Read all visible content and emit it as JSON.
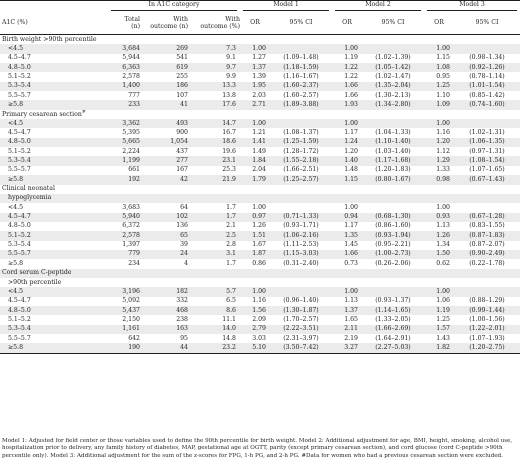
{
  "header": {
    "group_in_a1c": "In A1C category",
    "model1": "Model 1",
    "model2": "Model 2",
    "model3": "Model 3",
    "a1c": "A1C (%)",
    "total": "Total",
    "total_n": "(n)",
    "with_outcome_n_1": "With",
    "with_outcome_n_2": "outcome (n)",
    "with_outcome_pct_1": "With",
    "with_outcome_pct_2": "outcome (%)",
    "or": "OR",
    "ci": "95% CI"
  },
  "sections": [
    {
      "title": "Birth weight >90th percentile",
      "title_cont": "",
      "title_sup": "",
      "rows": [
        {
          "a1c": "<4.5",
          "total": "3,684",
          "n": "269",
          "pct": "7.3",
          "or1": "1.00",
          "ci1": "",
          "or2": "1.00",
          "ci2": "",
          "or3": "1.00",
          "ci3": ""
        },
        {
          "a1c": "4.5–4.7",
          "total": "5,944",
          "n": "541",
          "pct": "9.1",
          "or1": "1.27",
          "ci1": "(1.09–1.48)",
          "or2": "1.19",
          "ci2": "(1.02–1.39)",
          "or3": "1.15",
          "ci3": "(0.98–1.34)"
        },
        {
          "a1c": "4.8–5.0",
          "total": "6,363",
          "n": "619",
          "pct": "9.7",
          "or1": "1.37",
          "ci1": "(1.18–1.59)",
          "or2": "1.22",
          "ci2": "(1.05–1.42)",
          "or3": "1.08",
          "ci3": "(0.92–1.26)"
        },
        {
          "a1c": "5.1–5.2",
          "total": "2,578",
          "n": "255",
          "pct": "9.9",
          "or1": "1.39",
          "ci1": "(1.16–1.67)",
          "or2": "1.22",
          "ci2": "(1.02–1.47)",
          "or3": "0.95",
          "ci3": "(0.78–1.14)"
        },
        {
          "a1c": "5.3–5.4",
          "total": "1,400",
          "n": "186",
          "pct": "13.3",
          "or1": "1.95",
          "ci1": "(1.60–2.37)",
          "or2": "1.66",
          "ci2": "(1.35–2.04)",
          "or3": "1.25",
          "ci3": "(1.01–1.54)"
        },
        {
          "a1c": "5.5–5.7",
          "total": "777",
          "n": "107",
          "pct": "13.8",
          "or1": "2.03",
          "ci1": "(1.60–2.57)",
          "or2": "1.66",
          "ci2": "(1.30–2.13)",
          "or3": "1.10",
          "ci3": "(0.85–1.42)"
        },
        {
          "a1c": "≥5.8",
          "total": "233",
          "n": "41",
          "pct": "17.6",
          "or1": "2.71",
          "ci1": "(1.89–3.88)",
          "or2": "1.93",
          "ci2": "(1.34–2.80)",
          "or3": "1.09",
          "ci3": "(0.74–1.60)"
        }
      ]
    },
    {
      "title": "Primary cesarean section",
      "title_cont": "",
      "title_sup": "#",
      "rows": [
        {
          "a1c": "<4.5",
          "total": "3,362",
          "n": "493",
          "pct": "14.7",
          "or1": "1.00",
          "ci1": "",
          "or2": "1.00",
          "ci2": "",
          "or3": "1.00",
          "ci3": ""
        },
        {
          "a1c": "4.5–4.7",
          "total": "5,395",
          "n": "900",
          "pct": "16.7",
          "or1": "1.21",
          "ci1": "(1.08–1.37)",
          "or2": "1.17",
          "ci2": "(1.04–1.33)",
          "or3": "1.16",
          "ci3": "(1.02–1.31)"
        },
        {
          "a1c": "4.8–5.0",
          "total": "5,665",
          "n": "1,054",
          "pct": "18.6",
          "or1": "1.41",
          "ci1": "(1.25–1.59)",
          "or2": "1.24",
          "ci2": "(1.10–1.40)",
          "or3": "1.20",
          "ci3": "(1.06–1.35)"
        },
        {
          "a1c": "5.1–5.2",
          "total": "2,224",
          "n": "437",
          "pct": "19.6",
          "or1": "1.49",
          "ci1": "(1.28–1.72)",
          "or2": "1.20",
          "ci2": "(1.03–1.40)",
          "or3": "1.12",
          "ci3": "(0.97–1.31)"
        },
        {
          "a1c": "5.3–5.4",
          "total": "1,199",
          "n": "277",
          "pct": "23.1",
          "or1": "1.84",
          "ci1": "(1.55–2.18)",
          "or2": "1.40",
          "ci2": "(1.17–1.68)",
          "or3": "1.29",
          "ci3": "(1.08–1.54)"
        },
        {
          "a1c": "5.5–5.7",
          "total": "661",
          "n": "167",
          "pct": "25.3",
          "or1": "2.04",
          "ci1": "(1.66–2.51)",
          "or2": "1.48",
          "ci2": "(1.20–1.83)",
          "or3": "1.33",
          "ci3": "(1.07–1.65)"
        },
        {
          "a1c": "≥5.8",
          "total": "192",
          "n": "42",
          "pct": "21.9",
          "or1": "1.79",
          "ci1": "(1.25–2.57)",
          "or2": "1.15",
          "ci2": "(0.80–1.67)",
          "or3": "0.98",
          "ci3": "(0.67–1.43)"
        }
      ]
    },
    {
      "title": "Clinical neonatal",
      "title_cont": "hypoglycemia",
      "title_sup": "",
      "rows": [
        {
          "a1c": "<4.5",
          "total": "3,683",
          "n": "64",
          "pct": "1.7",
          "or1": "1.00",
          "ci1": "",
          "or2": "1.00",
          "ci2": "",
          "or3": "1.00",
          "ci3": ""
        },
        {
          "a1c": "4.5–4.7",
          "total": "5,940",
          "n": "102",
          "pct": "1.7",
          "or1": "0.97",
          "ci1": "(0.71–1.33)",
          "or2": "0.94",
          "ci2": "(0.68–1.30)",
          "or3": "0.93",
          "ci3": "(0.67–1.28)"
        },
        {
          "a1c": "4.8–5.0",
          "total": "6,372",
          "n": "136",
          "pct": "2.1",
          "or1": "1.26",
          "ci1": "(0.93–1.71)",
          "or2": "1.17",
          "ci2": "(0.86–1.60)",
          "or3": "1.13",
          "ci3": "(0.83–1.55)"
        },
        {
          "a1c": "5.1–5.2",
          "total": "2,578",
          "n": "65",
          "pct": "2.5",
          "or1": "1.51",
          "ci1": "(1.06–2.16)",
          "or2": "1.35",
          "ci2": "(0.93–1.94)",
          "or3": "1.26",
          "ci3": "(0.87–1.83)"
        },
        {
          "a1c": "5.3–5.4",
          "total": "1,397",
          "n": "39",
          "pct": "2.8",
          "or1": "1.67",
          "ci1": "(1.11–2.53)",
          "or2": "1.45",
          "ci2": "(0.95–2.21)",
          "or3": "1.34",
          "ci3": "(0.87–2.07)"
        },
        {
          "a1c": "5.5–5.7",
          "total": "779",
          "n": "24",
          "pct": "3.1",
          "or1": "1.87",
          "ci1": "(1.15–3.03)",
          "or2": "1.66",
          "ci2": "(1.00–2.73)",
          "or3": "1.50",
          "ci3": "(0.90–2.49)"
        },
        {
          "a1c": "≥5.8",
          "total": "234",
          "n": "4",
          "pct": "1.7",
          "or1": "0.86",
          "ci1": "(0.31–2.40)",
          "or2": "0.73",
          "ci2": "(0.26–2.06)",
          "or3": "0.62",
          "ci3": "(0.22–1.78)"
        }
      ]
    },
    {
      "title": "Cord serum C-peptide",
      "title_cont": ">90th percentile",
      "title_sup": "",
      "rows": [
        {
          "a1c": "<4.5",
          "total": "3,196",
          "n": "182",
          "pct": "5.7",
          "or1": "1.00",
          "ci1": "",
          "or2": "1.00",
          "ci2": "",
          "or3": "1.00",
          "ci3": ""
        },
        {
          "a1c": "4.5–4.7",
          "total": "5,092",
          "n": "332",
          "pct": "6.5",
          "or1": "1.16",
          "ci1": "(0.96–1.40)",
          "or2": "1.13",
          "ci2": "(0.93–1.37)",
          "or3": "1.06",
          "ci3": "(0.88–1.29)"
        },
        {
          "a1c": "4.8–5.0",
          "total": "5,437",
          "n": "468",
          "pct": "8.6",
          "or1": "1.56",
          "ci1": "(1.30–1.87)",
          "or2": "1.37",
          "ci2": "(1.14–1.65)",
          "or3": "1.19",
          "ci3": "(0.99–1.44)"
        },
        {
          "a1c": "5.1–5.2",
          "total": "2,150",
          "n": "238",
          "pct": "11.1",
          "or1": "2.09",
          "ci1": "(1.70–2.57)",
          "or2": "1.65",
          "ci2": "(1.33–2.05)",
          "or3": "1.25",
          "ci3": "(1.00–1.56)"
        },
        {
          "a1c": "5.3–5.4",
          "total": "1,161",
          "n": "163",
          "pct": "14.0",
          "or1": "2.79",
          "ci1": "(2.22–3.51)",
          "or2": "2.11",
          "ci2": "(1.66–2.69)",
          "or3": "1.57",
          "ci3": "(1.22–2.01)"
        },
        {
          "a1c": "5.5–5.7",
          "total": "642",
          "n": "95",
          "pct": "14.8",
          "or1": "3.03",
          "ci1": "(2.31–3.97)",
          "or2": "2.19",
          "ci2": "(1.64–2.91)",
          "or3": "1.43",
          "ci3": "(1.07–1.93)"
        },
        {
          "a1c": "≥5.8",
          "total": "190",
          "n": "44",
          "pct": "23.2",
          "or1": "5.10",
          "ci1": "(3.50–7.42)",
          "or2": "3.27",
          "ci2": "(2.27–5.03)",
          "or3": "1.82",
          "ci3": "(1.20–2.75)"
        }
      ]
    }
  ],
  "footnote": "Model 1: Adjusted for field center or those variables used to define the 90th percentile for birth weight. Model 2: Additional adjustment for age, BMI, height, smoking, alcohol use, hospitalization prior to delivery, any family history of diabetes, MAP, gestational age at OGTT, parity (except primary cesarean section), and cord glucose (cord C-peptide >90th percentile only). Model 3: Additional adjustment for the sum of the z-scores for FPG, 1-h PG, and 2-h PG. #Data for women who had a previous cesarean section were excluded."
}
